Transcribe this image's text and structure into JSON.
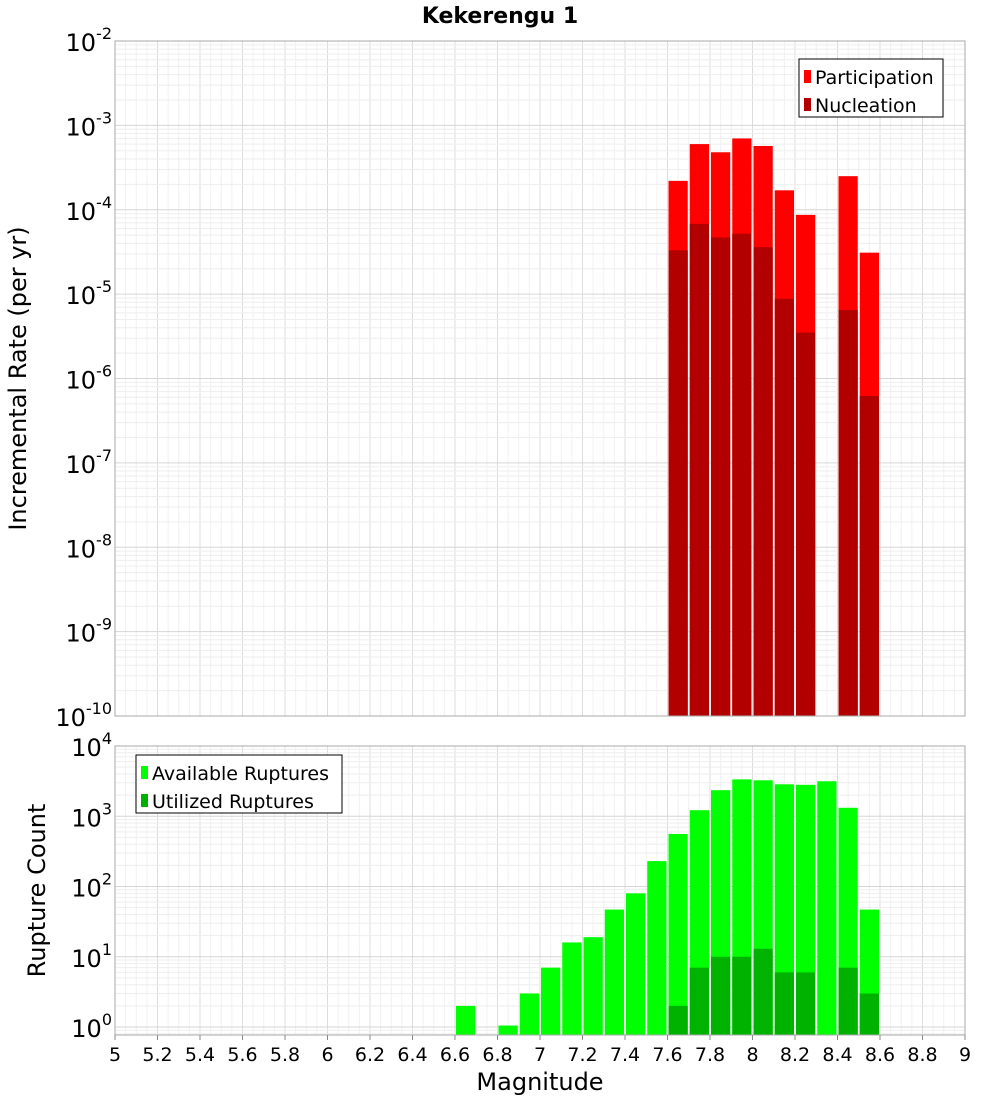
{
  "title": "Kekerengu 1",
  "chart_data": [
    {
      "type": "bar",
      "ylabel": "Incremental Rate (per yr)",
      "yscale": "log",
      "ylim": [
        1e-10,
        0.01
      ],
      "xlim": [
        5,
        9
      ],
      "grid": true,
      "legend_position": "top-right",
      "y_ticks": [
        {
          "base": "10",
          "exp": "-2",
          "value": 0.01
        },
        {
          "base": "10",
          "exp": "-3",
          "value": 0.001
        },
        {
          "base": "10",
          "exp": "-4",
          "value": 0.0001
        },
        {
          "base": "10",
          "exp": "-5",
          "value": 1e-05
        },
        {
          "base": "10",
          "exp": "-6",
          "value": 1e-06
        },
        {
          "base": "10",
          "exp": "-7",
          "value": 1e-07
        },
        {
          "base": "10",
          "exp": "-8",
          "value": 1e-08
        },
        {
          "base": "10",
          "exp": "-9",
          "value": 1e-09
        },
        {
          "base": "10",
          "exp": "-10",
          "value": 1e-10
        }
      ],
      "series": [
        {
          "name": "Participation",
          "color": "#ff0000",
          "x": [
            7.65,
            7.75,
            7.85,
            7.95,
            8.05,
            8.15,
            8.25,
            8.45,
            8.55
          ],
          "values": [
            0.00022,
            0.0006,
            0.00048,
            0.0007,
            0.00057,
            0.00017,
            8.7e-05,
            0.00025,
            3.1e-05
          ]
        },
        {
          "name": "Nucleation",
          "color": "#b20000",
          "x": [
            7.65,
            7.75,
            7.85,
            7.95,
            8.05,
            8.15,
            8.25,
            8.45,
            8.55
          ],
          "values": [
            3.3e-05,
            6.8e-05,
            4.7e-05,
            5.2e-05,
            3.6e-05,
            8.8e-06,
            3.5e-06,
            6.5e-06,
            6.2e-07
          ]
        }
      ]
    },
    {
      "type": "bar",
      "ylabel": "Rupture Count",
      "xlabel": "Magnitude",
      "yscale": "log",
      "ylim": [
        0.77,
        10000
      ],
      "xlim": [
        5,
        9
      ],
      "grid": true,
      "legend_position": "top-left",
      "x_ticks": [
        "5",
        "5.2",
        "5.4",
        "5.6",
        "5.8",
        "6",
        "6.2",
        "6.4",
        "6.6",
        "6.8",
        "7",
        "7.2",
        "7.4",
        "7.6",
        "7.8",
        "8",
        "8.2",
        "8.4",
        "8.6",
        "8.8",
        "9"
      ],
      "y_ticks": [
        {
          "base": "10",
          "exp": "4",
          "value": 10000
        },
        {
          "base": "10",
          "exp": "3",
          "value": 1000
        },
        {
          "base": "10",
          "exp": "2",
          "value": 100
        },
        {
          "base": "10",
          "exp": "1",
          "value": 10
        },
        {
          "base": "10",
          "exp": "0",
          "value": 1
        }
      ],
      "series": [
        {
          "name": "Available Ruptures",
          "color": "#00ff00",
          "x": [
            6.65,
            6.85,
            6.95,
            7.05,
            7.15,
            7.25,
            7.35,
            7.45,
            7.55,
            7.65,
            7.75,
            7.85,
            7.95,
            8.05,
            8.15,
            8.25,
            8.35,
            8.45,
            8.55
          ],
          "values": [
            2,
            1.05,
            3,
            7,
            16,
            19,
            47,
            80,
            230,
            560,
            1220,
            2350,
            3350,
            3250,
            2850,
            2800,
            3150,
            1320,
            47
          ]
        },
        {
          "name": "Utilized Ruptures",
          "color": "#00b200",
          "x": [
            7.65,
            7.75,
            7.85,
            7.95,
            8.05,
            8.15,
            8.25,
            8.45,
            8.55
          ],
          "values": [
            2,
            7,
            10,
            10,
            13,
            6,
            6,
            7,
            3
          ]
        }
      ]
    }
  ]
}
